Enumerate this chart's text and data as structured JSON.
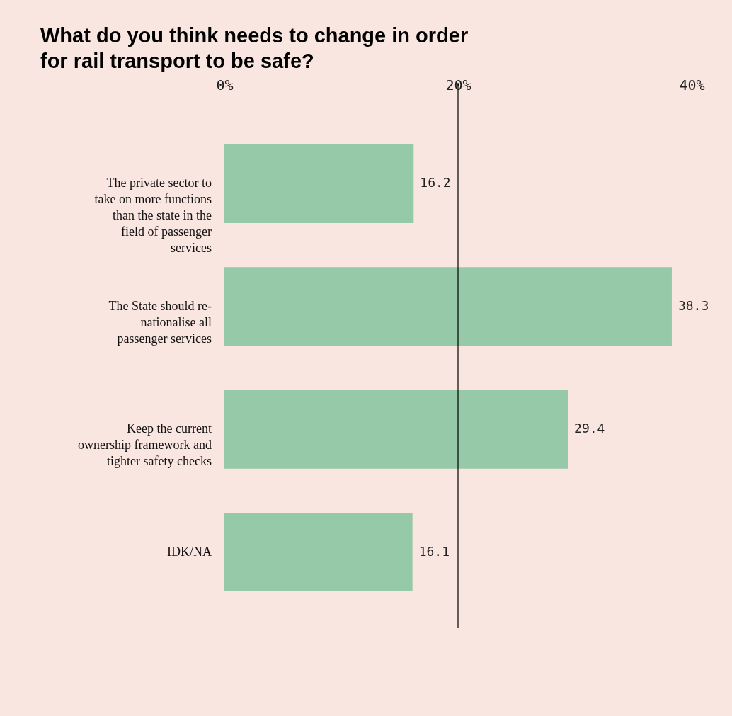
{
  "chart_data": {
    "type": "bar",
    "orientation": "horizontal",
    "title": "What do you think needs to change in order\nfor rail transport to be safe?",
    "categories": [
      "The private sector to take on more functions than the state in the field of passenger services",
      "The State should re-nationalise all passenger services",
      "Keep the current ownership framework and tighter safety checks",
      "IDK/NA"
    ],
    "values": [
      16.2,
      38.3,
      29.4,
      16.1
    ],
    "color": "#96c9a8",
    "xlim": [
      0,
      40
    ],
    "xticks": [
      {
        "value": 0,
        "label": "0%"
      },
      {
        "value": 20,
        "label": "20%"
      },
      {
        "value": 40,
        "label": "40%"
      }
    ],
    "ref_lines": [
      {
        "axis": "x",
        "value": 20,
        "color": "#000000"
      }
    ],
    "data_labels": true,
    "grid": false
  }
}
